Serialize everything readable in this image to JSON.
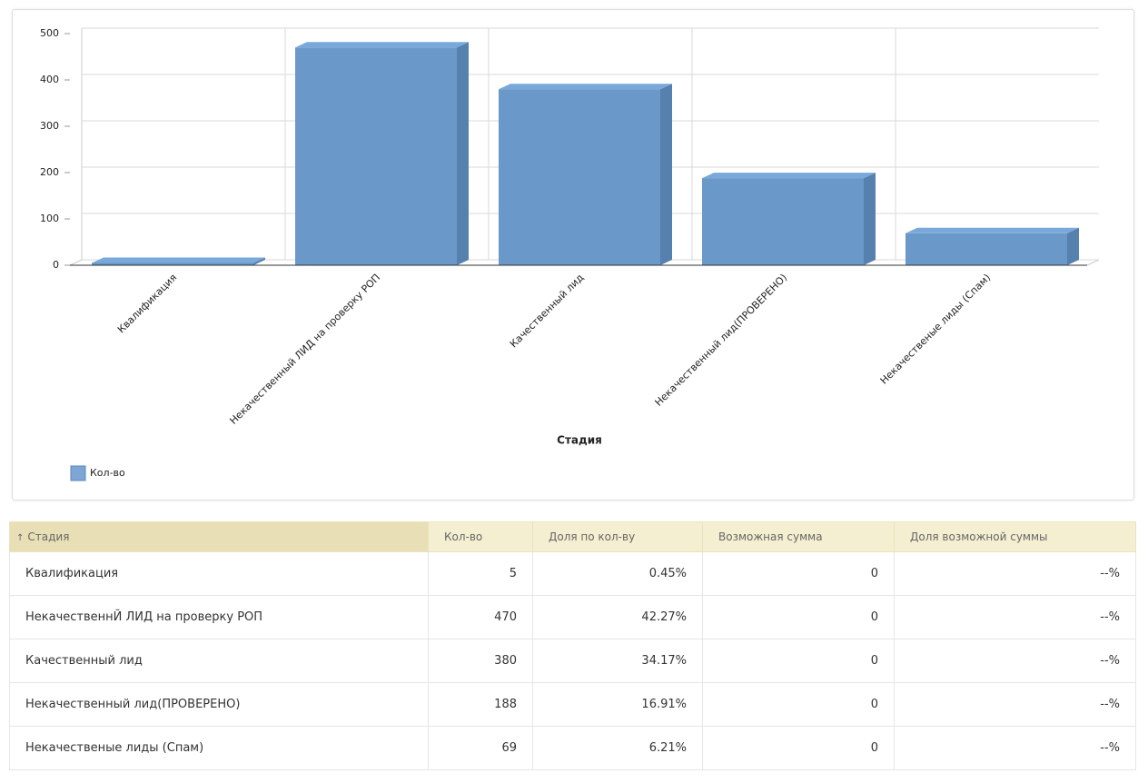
{
  "chart_data": {
    "type": "bar3d",
    "x_label": "Стадия",
    "categories": [
      "Квалификация",
      "Некачественный ЛИД на проверку РОП",
      "Качественный лид",
      "Некачественный лид(ПРОВЕРЕНО)",
      "Некачественые лиды (Спам)"
    ],
    "series": [
      {
        "name": "Кол-во",
        "color": "#6a98c8",
        "values": [
          5,
          470,
          380,
          188,
          69
        ]
      }
    ],
    "ylim": [
      0,
      500
    ],
    "yticks": [
      0,
      100,
      200,
      300,
      400,
      500
    ],
    "grid": true,
    "legend": "bottom-left"
  },
  "table": {
    "header": [
      "Стадия",
      "Кол-во",
      "Доля по кол-ву",
      "Возможная сумма",
      "Доля возможной суммы"
    ],
    "rows": [
      [
        "Квалификация",
        "5",
        "0.45%",
        "0",
        "--%"
      ],
      [
        "НекачественнЙ ЛИД на проверку РОП",
        "470",
        "42.27%",
        "0",
        "--%"
      ],
      [
        "Качественный лид",
        "380",
        "34.17%",
        "0",
        "--%"
      ],
      [
        "Некачественный лид(ПРОВЕРЕНО)",
        "188",
        "16.91%",
        "0",
        "--%"
      ],
      [
        "Некачественые лиды (Спам)",
        "69",
        "6.21%",
        "0",
        "--%"
      ]
    ]
  }
}
